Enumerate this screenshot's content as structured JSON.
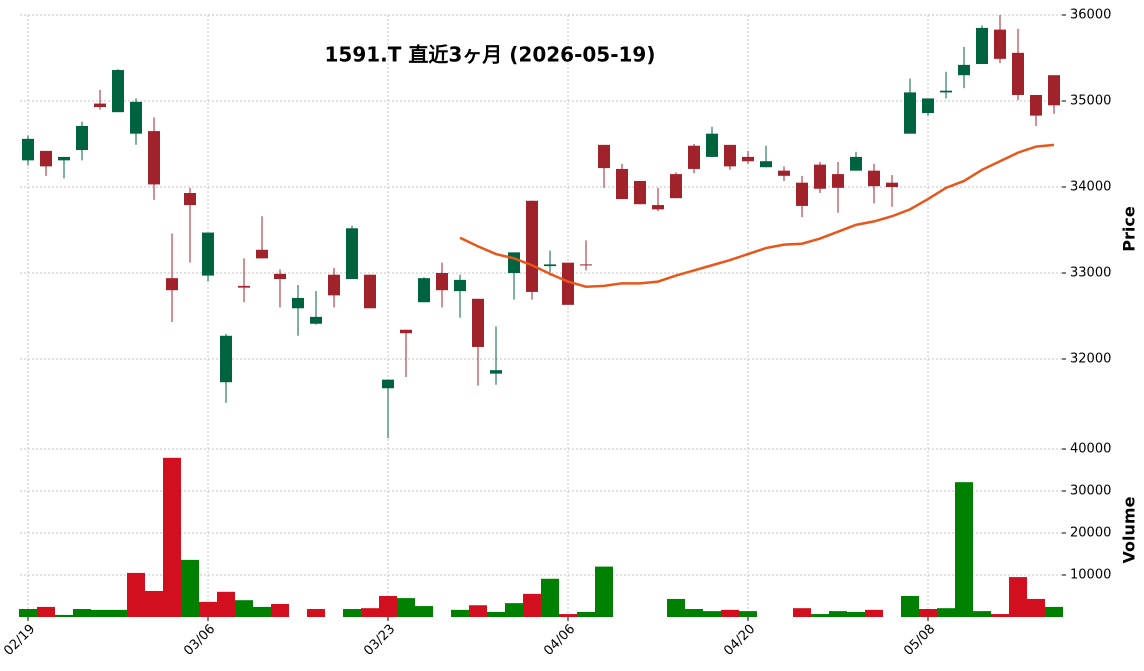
{
  "chart_data": {
    "type": "candlestick",
    "title": "1591.T  直近3ヶ月  (2026-05-19)",
    "categories": [
      "02/19",
      null,
      null,
      null,
      null,
      null,
      null,
      null,
      null,
      null,
      "03/06",
      null,
      null,
      null,
      null,
      null,
      null,
      null,
      null,
      null,
      "03/23",
      null,
      null,
      null,
      null,
      null,
      null,
      null,
      null,
      null,
      "04/06",
      null,
      null,
      null,
      null,
      null,
      null,
      null,
      null,
      null,
      "04/20",
      null,
      null,
      null,
      null,
      null,
      null,
      null,
      null,
      null,
      "05/08",
      null,
      null,
      null,
      null,
      null,
      null,
      null
    ],
    "open": [
      34310,
      34420,
      34310,
      34430,
      34970,
      34870,
      34620,
      34650,
      32940,
      33930,
      32970,
      31730,
      32850,
      33270,
      32990,
      32590,
      32410,
      32980,
      32930,
      32980,
      31660,
      32340,
      32660,
      33000,
      32790,
      32700,
      31830,
      33000,
      33840,
      33080,
      33120,
      33100,
      34490,
      34210,
      34070,
      33790,
      34150,
      34480,
      34350,
      34490,
      34350,
      34230,
      34190,
      34050,
      34260,
      34150,
      34190,
      34190,
      34050,
      34620,
      34860,
      35100,
      35300,
      35430,
      35830,
      35560,
      35070,
      35300
    ],
    "high": [
      34600,
      34420,
      34350,
      34760,
      35130,
      35370,
      35030,
      34810,
      33460,
      33990,
      33470,
      32290,
      33170,
      33660,
      33040,
      32860,
      32790,
      33060,
      33550,
      32980,
      31760,
      32340,
      32950,
      33120,
      32980,
      32700,
      32380,
      33240,
      33840,
      33260,
      33120,
      33380,
      34490,
      34270,
      34070,
      33990,
      34170,
      34500,
      34700,
      34490,
      34420,
      34480,
      34240,
      34130,
      34290,
      34290,
      34410,
      34270,
      34140,
      35260,
      35030,
      35340,
      35630,
      35880,
      36000,
      35840,
      35070,
      35300
    ],
    "low": [
      34250,
      34130,
      34100,
      34310,
      34900,
      34870,
      34490,
      33850,
      32430,
      33120,
      32900,
      31490,
      32660,
      33170,
      32600,
      32270,
      32400,
      32600,
      32930,
      32590,
      31080,
      31790,
      32660,
      32600,
      32480,
      31690,
      31700,
      32690,
      32690,
      32970,
      32630,
      33030,
      33990,
      33860,
      33800,
      33720,
      33870,
      34160,
      34350,
      34200,
      34270,
      34230,
      34070,
      33650,
      33930,
      33700,
      34190,
      33810,
      33770,
      34620,
      34830,
      35030,
      35150,
      35430,
      35440,
      35010,
      34710,
      34850
    ],
    "close": [
      34560,
      34240,
      34350,
      34710,
      34930,
      35360,
      34990,
      34030,
      32800,
      33790,
      33470,
      32270,
      32830,
      33170,
      32930,
      32710,
      32490,
      32740,
      33520,
      32590,
      31760,
      32300,
      32940,
      32800,
      32920,
      32140,
      31870,
      33240,
      32780,
      33100,
      32630,
      33090,
      34220,
      33860,
      33800,
      33740,
      33870,
      34210,
      34620,
      34240,
      34300,
      34300,
      34130,
      33780,
      33980,
      33990,
      34350,
      34010,
      34000,
      35100,
      35030,
      35120,
      35420,
      35850,
      35490,
      35070,
      34830,
      34950
    ],
    "ma": {
      "color": "#e8561a",
      "values": [
        null,
        null,
        null,
        null,
        null,
        null,
        null,
        null,
        null,
        null,
        null,
        null,
        null,
        null,
        null,
        null,
        null,
        null,
        null,
        null,
        null,
        null,
        null,
        null,
        33410,
        33310,
        33220,
        33170,
        33090,
        32990,
        32900,
        32840,
        32850,
        32880,
        32880,
        32900,
        32970,
        33030,
        33090,
        33150,
        33220,
        33290,
        33330,
        33340,
        33400,
        33480,
        33560,
        33600,
        33660,
        33740,
        33860,
        33990,
        34070,
        34200,
        34300,
        34400,
        34470,
        34490
      ]
    },
    "up_color": "#006340",
    "down_color": "#a0222a",
    "volume": [
      1900,
      2400,
      500,
      1900,
      1700,
      1700,
      10500,
      6200,
      37900,
      13600,
      3600,
      6000,
      4000,
      2400,
      3100,
      null,
      1900,
      null,
      1900,
      2100,
      5000,
      4500,
      2600,
      null,
      1700,
      2800,
      1200,
      3300,
      5500,
      9100,
      700,
      1200,
      12000,
      null,
      null,
      null,
      4300,
      1900,
      1400,
      1700,
      1400,
      null,
      null,
      2100,
      700,
      1400,
      1200,
      1700,
      null,
      5000,
      1900,
      2100,
      32100,
      1400,
      700,
      9500,
      4300,
      2400
    ],
    "volume_colors": [
      "#008000",
      "#d20f1e",
      "#008000",
      "#008000",
      "#008000",
      "#008000",
      "#d20f1e",
      "#d20f1e",
      "#d20f1e",
      "#008000",
      "#d20f1e",
      "#d20f1e",
      "#008000",
      "#008000",
      "#d20f1e",
      null,
      "#d20f1e",
      null,
      "#008000",
      "#d20f1e",
      "#d20f1e",
      "#008000",
      "#008000",
      null,
      "#008000",
      "#d20f1e",
      "#008000",
      "#008000",
      "#d20f1e",
      "#008000",
      "#d20f1e",
      "#008000",
      "#008000",
      null,
      null,
      null,
      "#008000",
      "#008000",
      "#008000",
      "#d20f1e",
      "#008000",
      null,
      null,
      "#d20f1e",
      "#008000",
      "#008000",
      "#008000",
      "#d20f1e",
      null,
      "#008000",
      "#d20f1e",
      "#008000",
      "#008000",
      "#008000",
      "#d20f1e",
      "#d20f1e",
      "#d20f1e",
      "#008000"
    ],
    "ylabel": "Price",
    "ylim": [
      31000,
      36000
    ],
    "yticks": [
      32000,
      33000,
      34000,
      35000,
      36000
    ],
    "volume_label": "Volume",
    "volume_ylim": [
      0,
      40000
    ],
    "volume_yticks": [
      10000,
      20000,
      30000,
      40000
    ],
    "grid": true
  }
}
